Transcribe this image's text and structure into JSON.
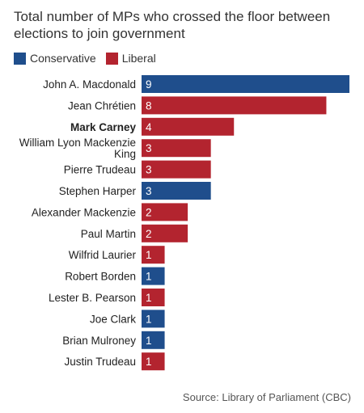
{
  "chart_data": {
    "type": "bar",
    "orientation": "horizontal",
    "title": "Total number of MPs who crossed the floor between elections to join government",
    "legend": [
      {
        "name": "Conservative",
        "color": "#1f4e8c"
      },
      {
        "name": "Liberal",
        "color": "#b3242f"
      }
    ],
    "categories": [
      "John A. Macdonald",
      "Jean Chrétien",
      "Mark Carney",
      "William Lyon Mackenzie King",
      "Pierre Trudeau",
      "Stephen Harper",
      "Alexander Mackenzie",
      "Paul Martin",
      "Wilfrid Laurier",
      "Robert Borden",
      "Lester B. Pearson",
      "Joe Clark",
      "Brian Mulroney",
      "Justin Trudeau"
    ],
    "values": [
      9,
      8,
      4,
      3,
      3,
      3,
      2,
      2,
      1,
      1,
      1,
      1,
      1,
      1
    ],
    "party": [
      "Conservative",
      "Liberal",
      "Liberal",
      "Liberal",
      "Liberal",
      "Conservative",
      "Liberal",
      "Liberal",
      "Liberal",
      "Conservative",
      "Liberal",
      "Conservative",
      "Conservative",
      "Liberal"
    ],
    "highlighted": [
      "Mark Carney"
    ],
    "xlim": [
      0,
      9
    ],
    "source": "Source: Library of Parliament (CBC)"
  }
}
